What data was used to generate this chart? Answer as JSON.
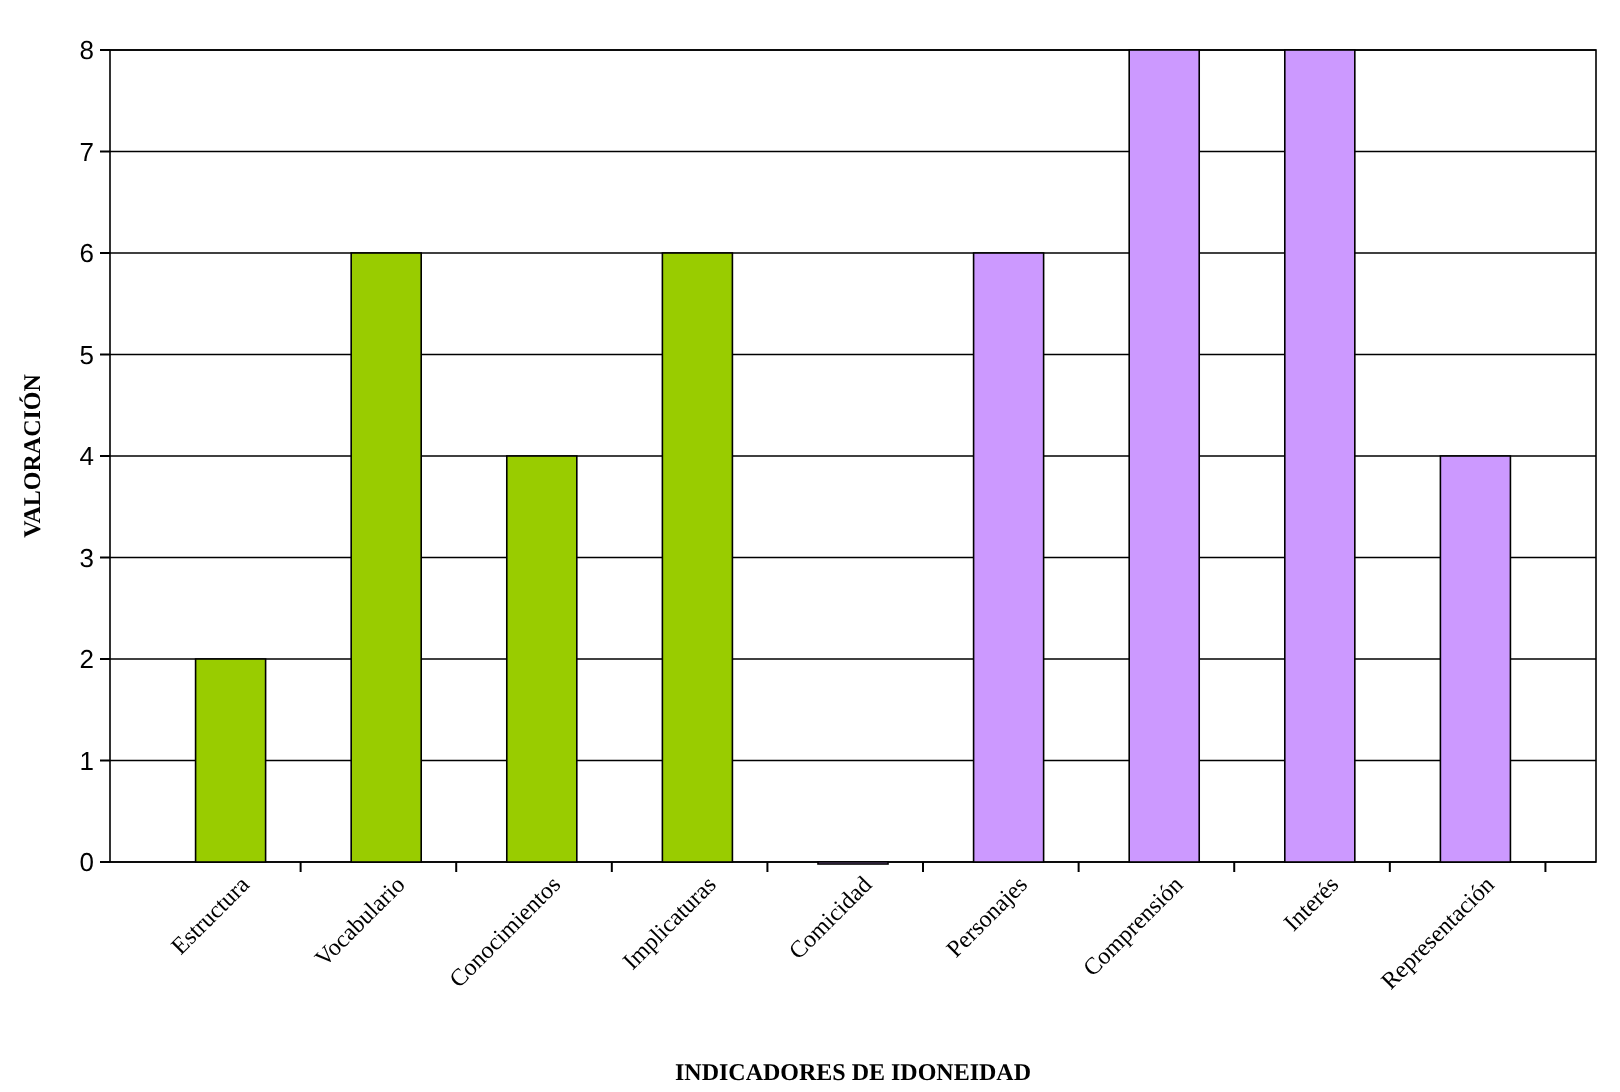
{
  "chart_data": {
    "type": "bar",
    "xlabel": "INDICADORES DE IDONEIDAD",
    "ylabel": "VALORACIÓN",
    "categories": [
      "Estructura",
      "Vocabulario",
      "Conocimientos",
      "Implicaturas",
      "Comicidad",
      "Personajes",
      "Comprensión",
      "Interés",
      "Representación"
    ],
    "values": [
      2,
      6,
      4,
      6,
      0,
      6,
      8,
      8,
      4
    ],
    "colors": [
      "#99cc00",
      "#99cc00",
      "#99cc00",
      "#99cc00",
      "#cc99ff",
      "#cc99ff",
      "#cc99ff",
      "#cc99ff",
      "#cc99ff"
    ],
    "ylim": [
      0,
      8
    ],
    "yticks": [
      0,
      1,
      2,
      3,
      4,
      5,
      6,
      7,
      8
    ],
    "grid": "y"
  }
}
